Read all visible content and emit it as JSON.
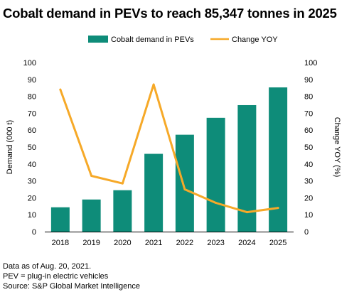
{
  "chart_data": {
    "type": "bar",
    "title": "Cobalt demand in PEVs to reach 85,347 tonnes in 2025",
    "categories": [
      "2018",
      "2019",
      "2020",
      "2021",
      "2022",
      "2023",
      "2024",
      "2025"
    ],
    "series": [
      {
        "name": "Cobalt demand in PEVs",
        "type": "bar",
        "axis": "left",
        "color": "#0e8c79",
        "values": [
          14.4,
          19.0,
          24.5,
          46.0,
          57.3,
          67.3,
          74.8,
          85.3
        ]
      },
      {
        "name": "Change YOY",
        "type": "line",
        "axis": "right",
        "color": "#f6a928",
        "values": [
          84,
          33,
          28.5,
          87,
          25,
          17,
          11.5,
          14
        ]
      }
    ],
    "ylabel": "Demand (000 t)",
    "y2label": "Change YOY (%)",
    "ylim": [
      0,
      100
    ],
    "y2lim": [
      0,
      100
    ],
    "yticks": [
      0,
      10,
      20,
      30,
      40,
      50,
      60,
      70,
      80,
      90,
      100
    ],
    "y2ticks": [
      0,
      10,
      20,
      30,
      40,
      50,
      60,
      70,
      80,
      90,
      100
    ],
    "grid": false,
    "legend": "top"
  },
  "notes": [
    "Data as of Aug. 20, 2021.",
    "PEV = plug-in electric vehicles",
    "Source: S&P Global Market Intelligence"
  ]
}
